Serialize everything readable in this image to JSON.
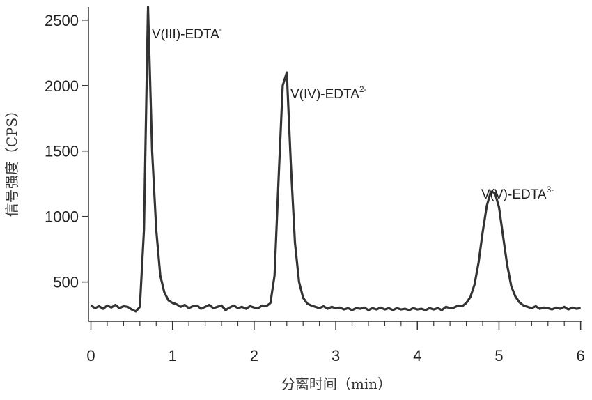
{
  "chart_data": {
    "type": "line",
    "xlabel": "分离时间（min）",
    "ylabel": "信号强度（CPS）",
    "x": [
      0,
      0.05,
      0.1,
      0.15,
      0.2,
      0.25,
      0.3,
      0.35,
      0.4,
      0.45,
      0.5,
      0.55,
      0.6,
      0.65,
      0.7,
      0.75,
      0.8,
      0.85,
      0.9,
      0.95,
      1,
      1.05,
      1.1,
      1.15,
      1.2,
      1.25,
      1.3,
      1.35,
      1.4,
      1.45,
      1.5,
      1.55,
      1.6,
      1.65,
      1.7,
      1.75,
      1.8,
      1.85,
      1.9,
      1.95,
      2,
      2.05,
      2.1,
      2.15,
      2.2,
      2.25,
      2.3,
      2.35,
      2.4,
      2.45,
      2.5,
      2.55,
      2.6,
      2.65,
      2.7,
      2.75,
      2.8,
      2.85,
      2.9,
      2.95,
      3,
      3.05,
      3.1,
      3.15,
      3.2,
      3.25,
      3.3,
      3.35,
      3.4,
      3.45,
      3.5,
      3.55,
      3.6,
      3.65,
      3.7,
      3.75,
      3.8,
      3.85,
      3.9,
      3.95,
      4,
      4.05,
      4.1,
      4.15,
      4.2,
      4.25,
      4.3,
      4.35,
      4.4,
      4.45,
      4.5,
      4.55,
      4.6,
      4.65,
      4.7,
      4.75,
      4.8,
      4.85,
      4.9,
      4.95,
      5,
      5.05,
      5.1,
      5.15,
      5.2,
      5.25,
      5.3,
      5.35,
      5.4,
      5.45,
      5.5,
      5.55,
      5.6,
      5.65,
      5.7,
      5.75,
      5.8,
      5.85,
      5.9,
      5.95,
      6
    ],
    "values": [
      320,
      300,
      315,
      295,
      320,
      305,
      325,
      300,
      315,
      310,
      290,
      275,
      310,
      900,
      2600,
      1500,
      900,
      550,
      420,
      360,
      340,
      330,
      310,
      325,
      300,
      315,
      320,
      295,
      310,
      325,
      300,
      310,
      320,
      285,
      305,
      320,
      300,
      310,
      295,
      315,
      305,
      300,
      320,
      315,
      340,
      550,
      1300,
      2000,
      2100,
      1400,
      800,
      500,
      380,
      335,
      320,
      310,
      300,
      315,
      295,
      310,
      300,
      305,
      290,
      300,
      285,
      300,
      295,
      305,
      285,
      300,
      290,
      305,
      290,
      300,
      285,
      300,
      290,
      295,
      285,
      300,
      290,
      295,
      285,
      300,
      290,
      300,
      285,
      310,
      300,
      305,
      320,
      315,
      340,
      385,
      480,
      650,
      880,
      1080,
      1190,
      1180,
      1070,
      850,
      630,
      470,
      390,
      345,
      320,
      310,
      300,
      315,
      295,
      305,
      300,
      290,
      305,
      295,
      310,
      290,
      305,
      295,
      300
    ],
    "color": "#333333",
    "xlim": [
      -0.03,
      6.02
    ],
    "xticks": [
      0,
      1,
      2,
      3,
      4,
      5,
      6
    ],
    "xminorticks": [
      0.2,
      0.4,
      0.6,
      0.8,
      1.2,
      1.4,
      1.6,
      1.8,
      2.2,
      2.4,
      2.6,
      2.8,
      3.2,
      3.4,
      3.6,
      3.8,
      4.2,
      4.4,
      4.6,
      4.8,
      5.2,
      5.4,
      5.6,
      5.8
    ],
    "ylim": [
      200,
      2600
    ],
    "yticks": [
      500,
      1000,
      1500,
      2000,
      2500
    ],
    "annotations": [
      {
        "text": "V(III)-EDTA",
        "sup": "-"
      },
      {
        "text": "V(IV)-EDTA",
        "sup": "2-"
      },
      {
        "text": "V(V)-EDTA",
        "sup": "3-"
      }
    ]
  }
}
